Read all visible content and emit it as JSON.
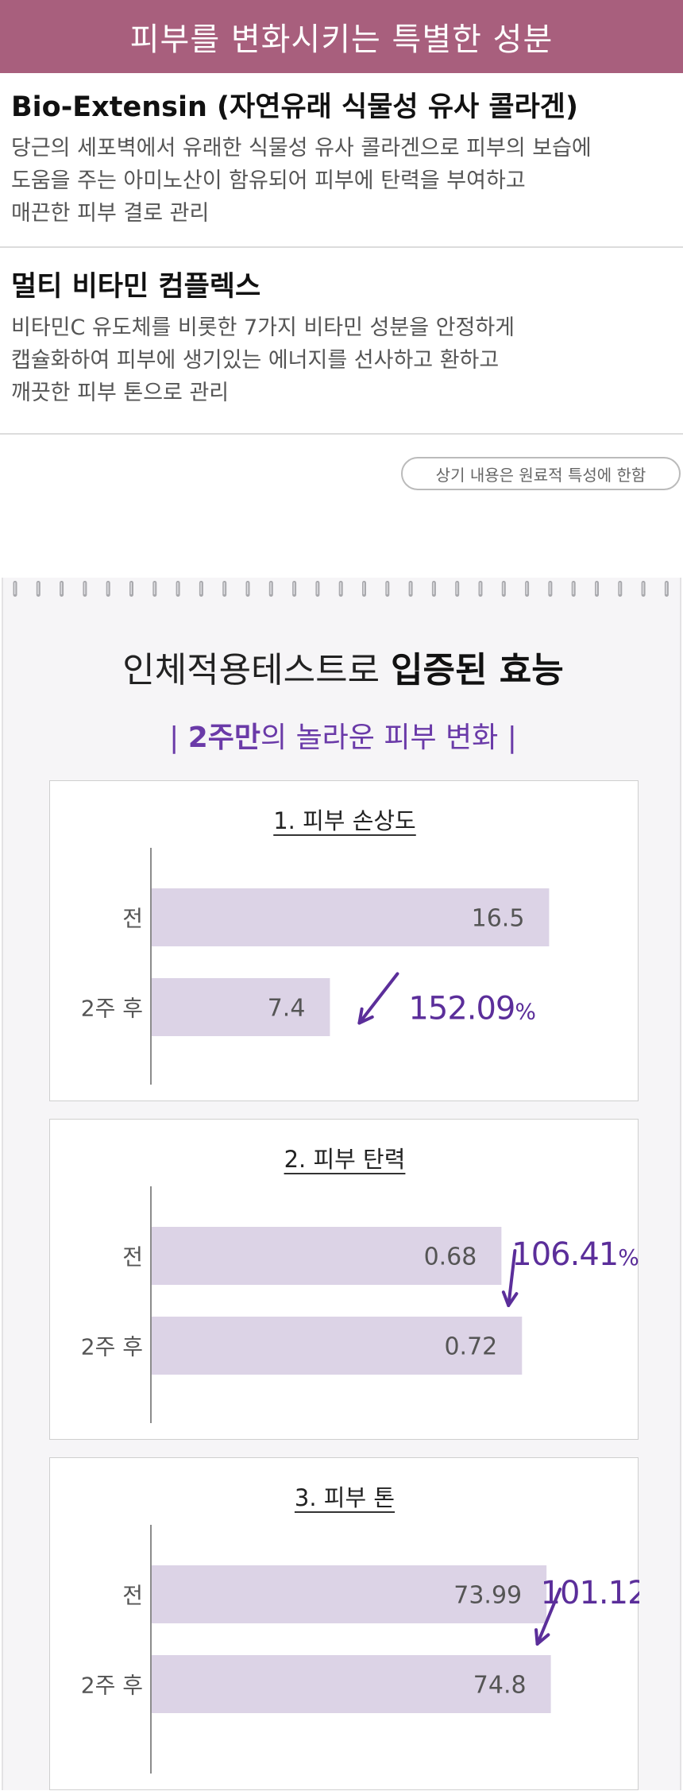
{
  "header": {
    "title": "피부를 변화시키는 특별한 성분"
  },
  "ingredients": [
    {
      "title": "Bio-Extensin (자연유래 식물성 유사 콜라겐)",
      "description": "당근의 세포벽에서 유래한 식물성 유사 콜라겐으로 피부의 보습에\n도움을 주는 아미노산이 함유되어 피부에 탄력을 부여하고\n매끈한 피부 결로 관리"
    },
    {
      "title": "멀티 비타민 컴플렉스",
      "description": "비타민C 유도체를 비롯한 7가지 비타민 성분을 안정하게\n캡슐화하여 피부에 생기있는 에너지를 선사하고 환하고\n깨끗한 피부 톤으로 관리"
    }
  ],
  "note": "상기 내용은 원료적 특성에 한함",
  "efficacy": {
    "title_light": "인체적용테스트로 ",
    "title_bold": "입증된 효능",
    "subtitle_open": "| ",
    "subtitle_bold": "2주만",
    "subtitle_rest": "의 놀라운 피부 변화 |"
  },
  "colors": {
    "header_bg": "#a85f7d",
    "bar": "#dcd3e6",
    "accent": "#5b2e9a",
    "axis": "#666666"
  },
  "chart_data": [
    {
      "type": "bar",
      "orientation": "horizontal",
      "title": "1. 피부 손상도",
      "categories": [
        "전",
        "2주 후"
      ],
      "values": [
        16.5,
        7.4
      ],
      "value_labels": [
        "16.5",
        "7.4"
      ],
      "change_label": "152.09",
      "change_unit": "%",
      "arrow": "down",
      "xlim": [
        0,
        18.3
      ]
    },
    {
      "type": "bar",
      "orientation": "horizontal",
      "title": "2. 피부 탄력",
      "categories": [
        "전",
        "2주 후"
      ],
      "values": [
        0.68,
        0.72
      ],
      "value_labels": [
        "0.68",
        "0.72"
      ],
      "change_label": "106.41",
      "change_unit": "%",
      "arrow": "down-right",
      "xlim": [
        0,
        0.857
      ]
    },
    {
      "type": "bar",
      "orientation": "horizontal",
      "title": "3. 피부 톤",
      "categories": [
        "전",
        "2주 후"
      ],
      "values": [
        73.99,
        74.8
      ],
      "value_labels": [
        "73.99",
        "74.8"
      ],
      "change_label": "101.12",
      "change_unit": "%",
      "arrow": "down-right",
      "xlim": [
        0,
        82.6
      ]
    }
  ]
}
